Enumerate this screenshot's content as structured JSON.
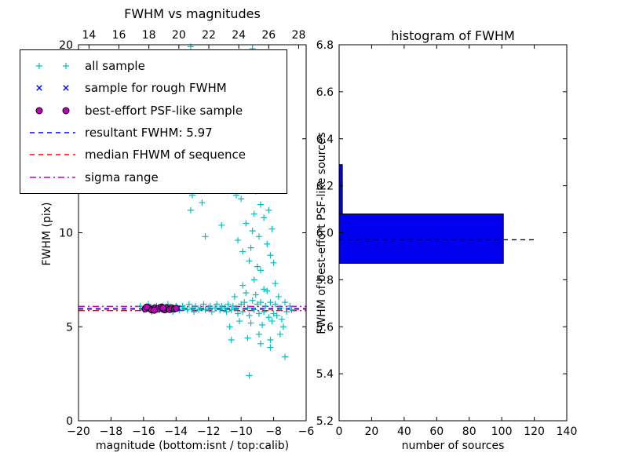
{
  "figure": {
    "background": "#ffffff"
  },
  "chart_data": [
    {
      "id": "fwhm_vs_mag",
      "type": "scatter",
      "title": "FWHM vs magnitudes",
      "xlabel": "magnitude (bottom:isnt / top:calib)",
      "ylabel": "FWHM (pix)",
      "xlim": [
        -20,
        -6
      ],
      "ylim": [
        0,
        20
      ],
      "top_xlim": [
        13.3,
        28.5
      ],
      "xticks": [
        -20,
        -18,
        -16,
        -14,
        -12,
        -10,
        -8,
        -6
      ],
      "xtick_labels": [
        "−20",
        "−18",
        "−16",
        "−14",
        "−12",
        "−10",
        "−8",
        "−6"
      ],
      "top_xticks": [
        14,
        16,
        18,
        20,
        22,
        24,
        26,
        28
      ],
      "top_xtick_labels": [
        "14",
        "16",
        "18",
        "20",
        "22",
        "24",
        "26",
        "28"
      ],
      "yticks": [
        0,
        5,
        10,
        15,
        20
      ],
      "ytick_labels": [
        "0",
        "5",
        "10",
        "15",
        "20"
      ],
      "grid": false,
      "legend_position": "upper-left",
      "series": [
        {
          "name": "all sample",
          "marker": "plus",
          "color": "#00BFBF",
          "points": [
            [
              -16.2,
              6.1
            ],
            [
              -16.0,
              5.9
            ],
            [
              -15.8,
              6.0
            ],
            [
              -15.7,
              6.2
            ],
            [
              -15.5,
              5.8
            ],
            [
              -15.4,
              6.0
            ],
            [
              -15.2,
              6.1
            ],
            [
              -15.0,
              5.9
            ],
            [
              -14.9,
              6.0
            ],
            [
              -14.8,
              6.1
            ],
            [
              -14.6,
              5.9
            ],
            [
              -14.5,
              6.2
            ],
            [
              -14.3,
              6.0
            ],
            [
              -14.2,
              5.8
            ],
            [
              -14.0,
              6.1
            ],
            [
              -13.9,
              6.0
            ],
            [
              -13.8,
              5.9
            ],
            [
              -13.6,
              6.1
            ],
            [
              -13.5,
              6.0
            ],
            [
              -13.3,
              5.9
            ],
            [
              -13.2,
              6.2
            ],
            [
              -13.0,
              6.0
            ],
            [
              -12.9,
              5.8
            ],
            [
              -12.8,
              6.1
            ],
            [
              -12.6,
              5.9
            ],
            [
              -12.5,
              6.0
            ],
            [
              -12.3,
              6.2
            ],
            [
              -12.2,
              5.9
            ],
            [
              -12.0,
              6.0
            ],
            [
              -11.9,
              6.1
            ],
            [
              -11.8,
              5.8
            ],
            [
              -11.6,
              6.0
            ],
            [
              -11.5,
              6.2
            ],
            [
              -11.3,
              5.9
            ],
            [
              -11.2,
              6.1
            ],
            [
              -11.0,
              6.0
            ],
            [
              -10.9,
              5.8
            ],
            [
              -10.8,
              6.2
            ],
            [
              -10.6,
              5.9
            ],
            [
              -10.5,
              6.1
            ],
            [
              -10.3,
              6.0
            ],
            [
              -10.2,
              5.7
            ],
            [
              -10.0,
              6.2
            ],
            [
              -9.9,
              5.8
            ],
            [
              -9.8,
              6.3
            ],
            [
              -9.6,
              6.0
            ],
            [
              -9.5,
              5.6
            ],
            [
              -9.3,
              6.4
            ],
            [
              -9.2,
              5.9
            ],
            [
              -9.0,
              6.2
            ],
            [
              -8.9,
              5.7
            ],
            [
              -8.8,
              6.3
            ],
            [
              -8.6,
              5.8
            ],
            [
              -8.5,
              6.1
            ],
            [
              -8.3,
              5.5
            ],
            [
              -8.2,
              6.3
            ],
            [
              -8.0,
              5.7
            ],
            [
              -7.9,
              6.2
            ],
            [
              -7.8,
              5.6
            ],
            [
              -7.6,
              6.0
            ],
            [
              -7.5,
              5.4
            ],
            [
              -7.3,
              6.3
            ],
            [
              -7.2,
              5.8
            ],
            [
              -7.0,
              6.1
            ],
            [
              -6.9,
              5.9
            ],
            [
              -10.4,
              6.6
            ],
            [
              -10.1,
              5.3
            ],
            [
              -9.7,
              6.8
            ],
            [
              -9.4,
              5.2
            ],
            [
              -9.1,
              6.7
            ],
            [
              -8.7,
              5.1
            ],
            [
              -8.4,
              6.9
            ],
            [
              -8.1,
              5.3
            ],
            [
              -7.7,
              6.6
            ],
            [
              -7.4,
              5.0
            ],
            [
              -9.9,
              7.2
            ],
            [
              -9.2,
              7.5
            ],
            [
              -8.6,
              7.0
            ],
            [
              -8.9,
              4.6
            ],
            [
              -9.6,
              4.4
            ],
            [
              -10.7,
              5.0
            ],
            [
              -8.2,
              4.3
            ],
            [
              -7.6,
              4.6
            ],
            [
              -7.9,
              7.3
            ],
            [
              -8.8,
              8.0
            ],
            [
              -9.5,
              8.5
            ],
            [
              -9.4,
              9.2
            ],
            [
              -9.3,
              10.1
            ],
            [
              -9.2,
              11.0
            ],
            [
              -9.1,
              12.2
            ],
            [
              -9.0,
              13.5
            ],
            [
              -9.3,
              14.1
            ],
            [
              -9.5,
              15.2
            ],
            [
              -9.2,
              16.0
            ],
            [
              -9.0,
              17.1
            ],
            [
              -9.4,
              18.2
            ],
            [
              -9.1,
              19.0
            ],
            [
              -9.3,
              19.8
            ],
            [
              -8.9,
              9.8
            ],
            [
              -8.8,
              11.5
            ],
            [
              -9.6,
              12.8
            ],
            [
              -9.7,
              10.5
            ],
            [
              -8.7,
              13.0
            ],
            [
              -9.8,
              15.8
            ],
            [
              -8.8,
              16.8
            ],
            [
              -9.6,
              17.8
            ],
            [
              -8.9,
              18.8
            ],
            [
              -9.9,
              9.0
            ],
            [
              -9.0,
              8.2
            ],
            [
              -9.7,
              19.5
            ],
            [
              -8.6,
              10.8
            ],
            [
              -8.5,
              12.5
            ],
            [
              -8.4,
              9.4
            ],
            [
              -8.3,
              11.2
            ],
            [
              -8.2,
              8.8
            ],
            [
              -9.8,
              13.8
            ],
            [
              -9.9,
              16.5
            ],
            [
              -10.0,
              11.8
            ],
            [
              -10.1,
              14.5
            ],
            [
              -10.2,
              9.6
            ],
            [
              -10.3,
              12.0
            ],
            [
              -8.1,
              10.2
            ],
            [
              -8.0,
              8.4
            ],
            [
              -13.1,
              11.2
            ],
            [
              -13.0,
              12.0
            ],
            [
              -12.9,
              12.8
            ],
            [
              -13.2,
              13.6
            ],
            [
              -13.0,
              14.4
            ],
            [
              -12.8,
              15.2
            ],
            [
              -13.1,
              16.0
            ],
            [
              -12.9,
              16.8
            ],
            [
              -13.0,
              17.6
            ],
            [
              -13.2,
              18.4
            ],
            [
              -12.8,
              19.2
            ],
            [
              -13.1,
              19.9
            ],
            [
              -12.6,
              13.2
            ],
            [
              -12.5,
              15.6
            ],
            [
              -12.7,
              17.9
            ],
            [
              -12.4,
              11.6
            ],
            [
              -14.2,
              12.5
            ],
            [
              -14.5,
              16.2
            ],
            [
              -13.6,
              19.4
            ],
            [
              -11.8,
              13.4
            ],
            [
              -11.5,
              18.0
            ],
            [
              -11.2,
              10.4
            ],
            [
              -10.8,
              19.4
            ],
            [
              -10.6,
              17.2
            ],
            [
              -11.9,
              19.6
            ],
            [
              -12.2,
              9.8
            ],
            [
              -14.0,
              19.0
            ],
            [
              -9.5,
              2.4
            ],
            [
              -7.3,
              3.4
            ],
            [
              -8.2,
              3.9
            ],
            [
              -10.6,
              4.3
            ],
            [
              -8.8,
              4.1
            ]
          ]
        },
        {
          "name": "sample for rough FWHM",
          "marker": "x",
          "color": "#0000FF",
          "points": [
            [
              -15.8,
              5.95
            ],
            [
              -15.4,
              6.0
            ],
            [
              -15.0,
              5.9
            ],
            [
              -14.6,
              6.0
            ],
            [
              -14.2,
              5.95
            ],
            [
              -13.9,
              6.0
            ],
            [
              -15.2,
              6.05
            ],
            [
              -14.4,
              5.9
            ]
          ]
        },
        {
          "name": "best-effort PSF-like sample",
          "marker": "circle",
          "color": "#BF00BF",
          "edge": "#000000",
          "points": [
            [
              -15.9,
              5.95
            ],
            [
              -15.7,
              6.0
            ],
            [
              -15.5,
              5.9
            ],
            [
              -15.3,
              6.0
            ],
            [
              -15.1,
              5.95
            ],
            [
              -14.9,
              6.05
            ],
            [
              -14.7,
              5.9
            ],
            [
              -14.55,
              6.0
            ],
            [
              -14.4,
              5.92
            ],
            [
              -14.25,
              6.0
            ],
            [
              -14.1,
              5.95
            ],
            [
              -15.8,
              6.05
            ],
            [
              -15.35,
              5.88
            ],
            [
              -14.8,
              6.0
            ],
            [
              -14.0,
              5.98
            ]
          ]
        }
      ],
      "hlines": [
        {
          "name": "resultant FWHM",
          "y": 5.97,
          "color": "#0000FF",
          "style": "dashed"
        },
        {
          "name": "median FHWM of sequence",
          "y": 5.93,
          "color": "#FF0000",
          "style": "dashed"
        },
        {
          "name": "sigma range upper",
          "y": 6.08,
          "color": "#BF00BF",
          "style": "dashdot"
        },
        {
          "name": "sigma range lower",
          "y": 5.86,
          "color": "#BF00BF",
          "style": "dashdot"
        }
      ],
      "legend": [
        {
          "label": "all sample",
          "swatch": "plus",
          "color": "#00BFBF"
        },
        {
          "label": "sample for rough FWHM",
          "swatch": "x",
          "color": "#0000FF"
        },
        {
          "label": "best-effort PSF-like sample",
          "swatch": "circle",
          "color": "#BF00BF",
          "edge": "#000000"
        },
        {
          "label": "resultant FWHM: 5.97",
          "swatch": "dashed",
          "color": "#0000FF"
        },
        {
          "label": "median FHWM of sequence",
          "swatch": "dashed",
          "color": "#FF0000"
        },
        {
          "label": "sigma range",
          "swatch": "dashdot",
          "color": "#BF00BF"
        }
      ],
      "resultant_fwhm": 5.97
    },
    {
      "id": "fwhm_histogram",
      "type": "bar",
      "orientation": "horizontal",
      "title": "histogram of FWHM",
      "xlabel": "number of sources",
      "ylabel": "FWHM of best-effort PSF-like sources",
      "xlim": [
        0,
        140
      ],
      "ylim": [
        5.2,
        6.8
      ],
      "xticks": [
        0,
        20,
        40,
        60,
        80,
        100,
        120,
        140
      ],
      "xtick_labels": [
        "0",
        "20",
        "40",
        "60",
        "80",
        "100",
        "120",
        "140"
      ],
      "yticks": [
        5.2,
        5.4,
        5.6,
        5.8,
        6.0,
        6.2,
        6.4,
        6.6,
        6.8
      ],
      "ytick_labels": [
        "5.2",
        "5.4",
        "5.6",
        "5.8",
        "6.0",
        "6.2",
        "6.4",
        "6.6",
        "6.8"
      ],
      "grid": false,
      "bar_color": "#0000EE",
      "bar_edge": "#000000",
      "bars": [
        {
          "from": 5.87,
          "to": 6.08,
          "count": 101
        },
        {
          "from": 6.08,
          "to": 6.29,
          "count": 2
        }
      ],
      "dashed_line": {
        "y": 5.97,
        "x_from": 0,
        "x_to": 120,
        "color": "#000000",
        "style": "dashed"
      }
    }
  ]
}
